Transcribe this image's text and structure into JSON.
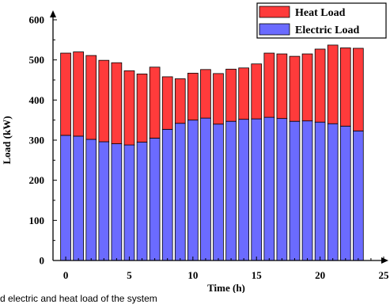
{
  "chart_data": {
    "type": "bar",
    "stacked": true,
    "title": "",
    "xlabel": "Time (h)",
    "ylabel": "Load (kW)",
    "xlim": [
      -1,
      25
    ],
    "ylim": [
      0,
      600
    ],
    "xticks": [
      0,
      5,
      10,
      15,
      20,
      25
    ],
    "yticks": [
      0,
      100,
      200,
      300,
      400,
      500,
      600
    ],
    "x": [
      0,
      1,
      2,
      3,
      4,
      5,
      6,
      7,
      8,
      9,
      10,
      11,
      12,
      13,
      14,
      15,
      16,
      17,
      18,
      19,
      20,
      21,
      22,
      23
    ],
    "series": [
      {
        "name": "Electric Load",
        "color": "#6b6bff",
        "values": [
          312,
          310,
          302,
          296,
          291,
          288,
          295,
          305,
          327,
          342,
          350,
          355,
          340,
          347,
          352,
          353,
          357,
          354,
          347,
          348,
          345,
          341,
          335,
          323
        ]
      },
      {
        "name": "Heat Load",
        "color": "#ff3b3b",
        "values": [
          205,
          210,
          209,
          203,
          202,
          185,
          170,
          177,
          131,
          111,
          117,
          121,
          126,
          130,
          128,
          137,
          160,
          161,
          162,
          167,
          182,
          196,
          195,
          206
        ]
      }
    ],
    "legend": {
      "position": "top-right",
      "entries": [
        {
          "label": "Heat Load",
          "color": "#ff3b3b"
        },
        {
          "label": "Electric Load",
          "color": "#6b6bff"
        }
      ]
    },
    "grid": false
  },
  "caption": "d electric and heat load of the system"
}
